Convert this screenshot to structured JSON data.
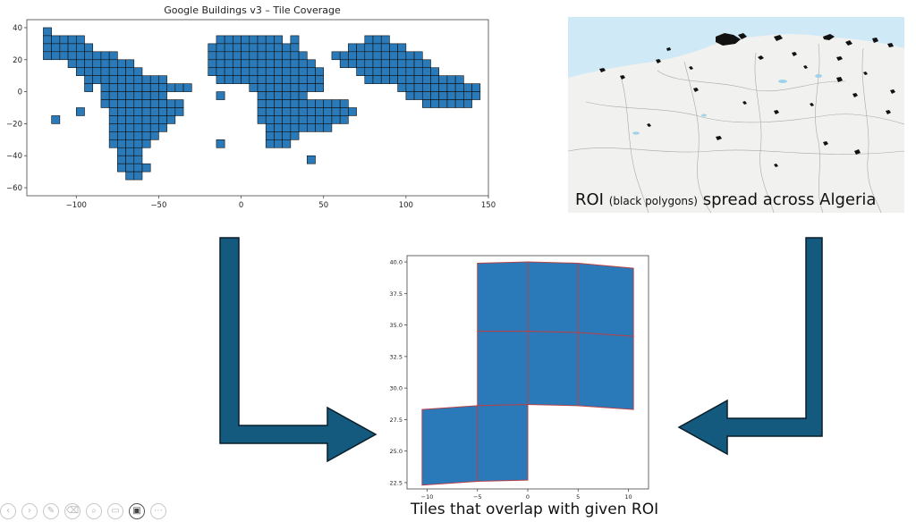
{
  "chart_data": [
    {
      "type": "map",
      "title": "Google Buildings v3 – Tile Coverage",
      "xlabel": "",
      "ylabel": "",
      "xlim": [
        -130,
        150
      ],
      "ylim": [
        -65,
        45
      ],
      "xticks": [
        -100,
        -50,
        0,
        50,
        100,
        150
      ],
      "yticks": [
        -60,
        -40,
        -20,
        0,
        20,
        40
      ],
      "xtick_labels": [
        "−100",
        "−50",
        "0",
        "50",
        "100",
        "150"
      ],
      "ytick_labels": [
        "−60",
        "−40",
        "−20",
        "0",
        "20",
        "40"
      ],
      "tile_size_deg": 5,
      "face_color": "#2a7ab9",
      "edge_color": "#111111",
      "tile_rows": [
        {
          "lat": 35,
          "x": [
            [
              -120,
              -115
            ]
          ]
        },
        {
          "lat": 30,
          "x": [
            [
              -120,
              -95
            ],
            [
              -15,
              25
            ],
            [
              30,
              35
            ],
            [
              75,
              90
            ]
          ]
        },
        {
          "lat": 25,
          "x": [
            [
              -120,
              -90
            ],
            [
              -20,
              35
            ],
            [
              65,
              100
            ]
          ]
        },
        {
          "lat": 20,
          "x": [
            [
              -120,
              -75
            ],
            [
              -20,
              40
            ],
            [
              55,
              110
            ]
          ]
        },
        {
          "lat": 15,
          "x": [
            [
              -105,
              -65
            ],
            [
              -20,
              45
            ],
            [
              60,
              115
            ]
          ]
        },
        {
          "lat": 10,
          "x": [
            [
              -100,
              -60
            ],
            [
              -20,
              50
            ],
            [
              70,
              120
            ]
          ]
        },
        {
          "lat": 5,
          "x": [
            [
              -95,
              -45
            ],
            [
              -15,
              50
            ],
            [
              75,
              135
            ]
          ]
        },
        {
          "lat": 0,
          "x": [
            [
              -85,
              -30
            ],
            [
              5,
              50
            ],
            [
              95,
              145
            ]
          ]
        },
        {
          "lat": -5,
          "x": [
            [
              -85,
              -45
            ],
            [
              10,
              40
            ],
            [
              100,
              145
            ]
          ]
        },
        {
          "lat": -10,
          "x": [
            [
              -85,
              -35
            ],
            [
              10,
              65
            ],
            [
              110,
              140
            ]
          ]
        },
        {
          "lat": -15,
          "x": [
            [
              -80,
              -35
            ],
            [
              10,
              70
            ]
          ]
        },
        {
          "lat": -20,
          "x": [
            [
              -80,
              -40
            ],
            [
              10,
              65
            ]
          ]
        },
        {
          "lat": -25,
          "x": [
            [
              -80,
              -45
            ],
            [
              15,
              55
            ]
          ]
        },
        {
          "lat": -30,
          "x": [
            [
              -80,
              -50
            ],
            [
              15,
              35
            ]
          ]
        },
        {
          "lat": -35,
          "x": [
            [
              -80,
              -55
            ],
            [
              15,
              30
            ]
          ]
        },
        {
          "lat": -40,
          "x": [
            [
              -75,
              -60
            ]
          ]
        },
        {
          "lat": -45,
          "x": [
            [
              -75,
              -60
            ]
          ]
        },
        {
          "lat": -50,
          "x": [
            [
              -75,
              -55
            ]
          ]
        },
        {
          "lat": -55,
          "x": [
            [
              -70,
              -60
            ]
          ]
        }
      ],
      "tile_extras": [
        [
          -115,
          -20
        ],
        [
          -95,
          0
        ],
        [
          -100,
          -15
        ],
        [
          -15,
          -5
        ],
        [
          -15,
          -35
        ],
        [
          120,
          -5
        ],
        [
          40,
          -45
        ]
      ]
    },
    {
      "type": "map",
      "title": "",
      "xlabel": "",
      "ylabel": "",
      "xlim": [
        -12,
        12
      ],
      "ylim": [
        22,
        40.5
      ],
      "xticks": [
        -10,
        -5,
        0,
        5,
        10
      ],
      "yticks": [
        22.5,
        25.0,
        27.5,
        30.0,
        32.5,
        35.0,
        37.5,
        40.0
      ],
      "xtick_labels": [
        "−10",
        "−5",
        "0",
        "5",
        "10"
      ],
      "ytick_labels": [
        "22.5",
        "25.0",
        "27.5",
        "30.0",
        "32.5",
        "35.0",
        "37.5",
        "40.0"
      ],
      "face_color": "#2a7ab9",
      "edge_color": "#b5424a",
      "tiles": [
        [
          [
            -5,
            39.9
          ],
          [
            0,
            40.0
          ],
          [
            0,
            34.5
          ],
          [
            -5,
            34.5
          ]
        ],
        [
          [
            0,
            40.0
          ],
          [
            5,
            39.9
          ],
          [
            5,
            34.4
          ],
          [
            0,
            34.5
          ]
        ],
        [
          [
            5,
            39.9
          ],
          [
            10.5,
            39.5
          ],
          [
            10.5,
            34.1
          ],
          [
            5,
            34.4
          ]
        ],
        [
          [
            -5,
            34.5
          ],
          [
            0,
            34.5
          ],
          [
            0,
            28.7
          ],
          [
            -5,
            28.6
          ]
        ],
        [
          [
            0,
            34.5
          ],
          [
            5,
            34.4
          ],
          [
            5,
            28.6
          ],
          [
            0,
            28.7
          ]
        ],
        [
          [
            5,
            34.4
          ],
          [
            10.5,
            34.1
          ],
          [
            10.5,
            28.3
          ],
          [
            5,
            28.6
          ]
        ],
        [
          [
            -10.5,
            28.3
          ],
          [
            -5,
            28.6
          ],
          [
            -5,
            22.6
          ],
          [
            -10.5,
            22.3
          ]
        ],
        [
          [
            -5,
            28.6
          ],
          [
            0,
            28.7
          ],
          [
            0,
            22.7
          ],
          [
            -5,
            22.6
          ]
        ]
      ]
    }
  ],
  "map_panel": {
    "caption_main_1": "ROI",
    "caption_small": "(black polygons)",
    "caption_main_2": "spread across Algeria",
    "colors": {
      "sea": "#cfe9f7",
      "land": "#f1f1ef",
      "border": "#a8a8a8",
      "roi": "#111111",
      "water": "#9fd3ea"
    }
  },
  "bottom_caption": "Tiles that overlap with given ROI",
  "arrows": {
    "fill": "#135a7e",
    "stroke": "#0a1e2a"
  },
  "toolbar": {
    "icons": [
      "previous-icon",
      "play-icon",
      "pen-icon",
      "eraser-icon",
      "zoom-icon",
      "subtitles-icon",
      "camera-icon",
      "more-icon"
    ],
    "glyphs": [
      "‹",
      "›",
      "✎",
      "⌫",
      "⌕",
      "▭",
      "▣",
      "⋯"
    ]
  }
}
